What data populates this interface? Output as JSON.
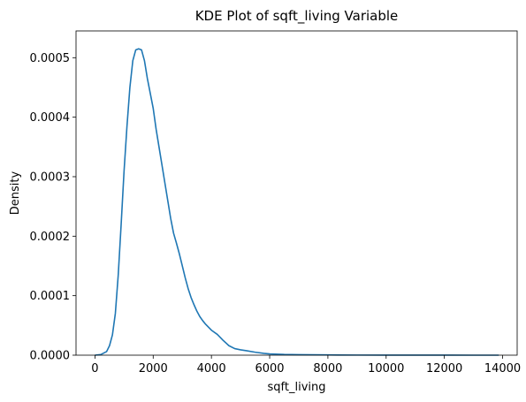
{
  "chart_data": {
    "type": "line",
    "title": "KDE Plot of sqft_living Variable",
    "xlabel": "sqft_living",
    "ylabel": "Density",
    "xlim": [
      -650,
      14500
    ],
    "ylim": [
      0,
      0.000545
    ],
    "xticks": [
      {
        "value": 0,
        "label": "0"
      },
      {
        "value": 2000,
        "label": "2000"
      },
      {
        "value": 4000,
        "label": "4000"
      },
      {
        "value": 6000,
        "label": "6000"
      },
      {
        "value": 8000,
        "label": "8000"
      },
      {
        "value": 10000,
        "label": "10000"
      },
      {
        "value": 12000,
        "label": "12000"
      },
      {
        "value": 14000,
        "label": "14000"
      }
    ],
    "yticks": [
      {
        "value": 0,
        "label": "0.0000"
      },
      {
        "value": 0.0001,
        "label": "0.0001"
      },
      {
        "value": 0.0002,
        "label": "0.0002"
      },
      {
        "value": 0.0003,
        "label": "0.0003"
      },
      {
        "value": 0.0004,
        "label": "0.0004"
      },
      {
        "value": 0.0005,
        "label": "0.0005"
      }
    ],
    "grid": false,
    "legend": "none",
    "series": [
      {
        "color": "#1f77b4",
        "x": [
          0,
          200,
          400,
          500,
          600,
          700,
          800,
          900,
          1000,
          1100,
          1200,
          1300,
          1400,
          1500,
          1600,
          1700,
          1800,
          1900,
          2000,
          2100,
          2200,
          2300,
          2400,
          2500,
          2600,
          2700,
          2800,
          2900,
          3000,
          3100,
          3200,
          3300,
          3400,
          3500,
          3600,
          3700,
          3800,
          3900,
          4000,
          4200,
          4400,
          4600,
          4800,
          5000,
          5200,
          5500,
          5800,
          6000,
          6500,
          7000,
          8000,
          9000,
          10000,
          11000,
          12000,
          13000,
          13870
        ],
        "y": [
          0,
          1e-06,
          6e-06,
          1.6e-05,
          3.4e-05,
          7e-05,
          0.000135,
          0.00022,
          0.00031,
          0.000385,
          0.00045,
          0.000495,
          0.000513,
          0.000515,
          0.000513,
          0.000495,
          0.000465,
          0.00044,
          0.000415,
          0.00038,
          0.00035,
          0.00032,
          0.00029,
          0.00026,
          0.00023,
          0.000205,
          0.000188,
          0.00017,
          0.00015,
          0.00013,
          0.000112,
          9.7e-05,
          8.5e-05,
          7.4e-05,
          6.5e-05,
          5.8e-05,
          5.2e-05,
          4.7e-05,
          4.2e-05,
          3.5e-05,
          2.5e-05,
          1.6e-05,
          1.1e-05,
          9e-06,
          7.5e-06,
          5e-06,
          3e-06,
          2.2e-06,
          1.2e-06,
          8e-07,
          4e-07,
          2e-07,
          1e-07,
          5e-08,
          3e-08,
          1e-08,
          0
        ]
      }
    ]
  }
}
